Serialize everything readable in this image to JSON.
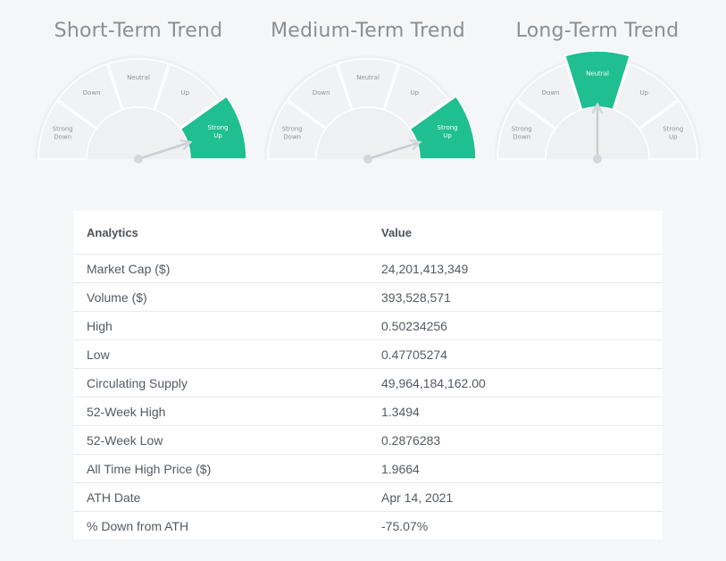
{
  "chart_data": [
    {
      "type": "gauge",
      "title": "Short-Term Trend",
      "segments": [
        "Strong Down",
        "Down",
        "Neutral",
        "Up",
        "Strong Up"
      ],
      "selected": "Strong Up",
      "accent_color": "#1fbf92"
    },
    {
      "type": "gauge",
      "title": "Medium-Term Trend",
      "segments": [
        "Strong Down",
        "Down",
        "Neutral",
        "Up",
        "Strong Up"
      ],
      "selected": "Strong Up",
      "accent_color": "#1fbf92"
    },
    {
      "type": "gauge",
      "title": "Long-Term Trend",
      "segments": [
        "Strong Down",
        "Down",
        "Neutral",
        "Up",
        "Strong Up"
      ],
      "selected": "Neutral",
      "accent_color": "#1fbf92"
    },
    {
      "type": "table",
      "columns": [
        "Analytics",
        "Value"
      ],
      "rows": [
        [
          "Market Cap ($)",
          "24,201,413,349"
        ],
        [
          "Volume ($)",
          "393,528,571"
        ],
        [
          "High",
          "0.50234256"
        ],
        [
          "Low",
          "0.47705274"
        ],
        [
          "Circulating Supply",
          "49,964,184,162.00"
        ],
        [
          "52-Week High",
          "1.3494"
        ],
        [
          "52-Week Low",
          "0.2876283"
        ],
        [
          "All Time High Price ($)",
          "1.9664"
        ],
        [
          "ATH Date",
          "Apr 14, 2021"
        ],
        [
          "% Down from ATH",
          "-75.07%"
        ]
      ]
    }
  ]
}
